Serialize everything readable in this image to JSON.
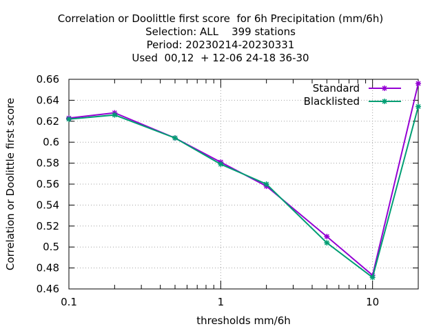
{
  "chart_data": {
    "type": "line",
    "title_lines": [
      "Correlation or Doolittle first score  for 6h Precipitation (mm/6h)",
      "Selection: ALL    399 stations",
      "Period: 20230214-20230331",
      "Used  00,12  + 12-06 24-18 36-30"
    ],
    "xlabel": "thresholds mm/6h",
    "ylabel": "Correlation or Doolittle first score",
    "x_scale": "log",
    "xlim": [
      0.1,
      20
    ],
    "ylim": [
      0.46,
      0.66
    ],
    "x_ticks": [
      {
        "value": 0.1,
        "label": "0.1"
      },
      {
        "value": 1,
        "label": "1"
      },
      {
        "value": 10,
        "label": "10"
      }
    ],
    "x_minor_ticks": [
      0.2,
      0.3,
      0.4,
      0.5,
      0.6,
      0.7,
      0.8,
      0.9,
      2,
      3,
      4,
      5,
      6,
      7,
      8,
      9,
      20
    ],
    "y_ticks": [
      {
        "value": 0.46,
        "label": "0.46"
      },
      {
        "value": 0.48,
        "label": "0.48"
      },
      {
        "value": 0.5,
        "label": "0.5"
      },
      {
        "value": 0.52,
        "label": "0.52"
      },
      {
        "value": 0.54,
        "label": "0.54"
      },
      {
        "value": 0.56,
        "label": "0.56"
      },
      {
        "value": 0.58,
        "label": "0.58"
      },
      {
        "value": 0.6,
        "label": "0.6"
      },
      {
        "value": 0.62,
        "label": "0.62"
      },
      {
        "value": 0.64,
        "label": "0.64"
      },
      {
        "value": 0.66,
        "label": "0.66"
      }
    ],
    "grid": true,
    "legend_position": "top-right",
    "x": [
      0.1,
      0.2,
      0.5,
      1,
      2,
      5,
      10,
      20
    ],
    "series": [
      {
        "name": "Standard",
        "color": "#9400d3",
        "values": [
          0.623,
          0.628,
          0.604,
          0.581,
          0.558,
          0.51,
          0.473,
          0.656
        ]
      },
      {
        "name": "Blacklisted",
        "color": "#009e73",
        "values": [
          0.622,
          0.626,
          0.604,
          0.579,
          0.56,
          0.504,
          0.471,
          0.634
        ]
      }
    ]
  }
}
